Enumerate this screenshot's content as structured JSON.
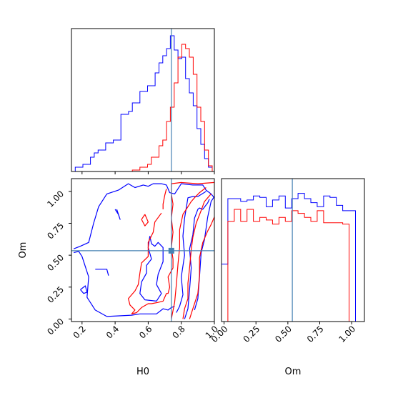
{
  "chart_data": [
    {
      "type": "histogram",
      "panel": "H0-marginal",
      "bins": [
        0.136,
        0.159,
        0.182,
        0.205,
        0.228,
        0.251,
        0.274,
        0.297,
        0.32,
        0.343,
        0.366,
        0.389,
        0.412,
        0.435,
        0.458,
        0.481,
        0.504,
        0.527,
        0.55,
        0.573,
        0.596,
        0.619,
        0.642,
        0.665,
        0.688,
        0.711,
        0.734,
        0.757,
        0.78,
        0.803,
        0.826,
        0.849,
        0.872,
        0.895,
        0.918,
        0.941,
        0.964,
        0.987
      ],
      "series": [
        {
          "color": "#0000ff",
          "values": [
            0.0,
            0.03,
            0.03,
            0.05,
            0.05,
            0.1,
            0.13,
            0.15,
            0.15,
            0.2,
            0.2,
            0.22,
            0.22,
            0.4,
            0.4,
            0.42,
            0.48,
            0.48,
            0.56,
            0.56,
            0.6,
            0.6,
            0.69,
            0.76,
            0.81,
            0.86,
            0.95,
            0.85,
            0.79,
            0.8,
            0.65,
            0.55,
            0.46,
            0.3,
            0.19,
            0.09,
            0.03
          ]
        },
        {
          "color": "#ff0000",
          "values": [
            0.0,
            0.0,
            0.0,
            0.0,
            0.0,
            0.0,
            0.0,
            0.0,
            0.0,
            0.0,
            0.0,
            0.0,
            0.0,
            0.0,
            0.0,
            0.0,
            0.01,
            0.01,
            0.03,
            0.03,
            0.05,
            0.1,
            0.1,
            0.18,
            0.22,
            0.35,
            0.45,
            0.62,
            0.8,
            0.89,
            0.86,
            0.8,
            0.68,
            0.45,
            0.35,
            0.15,
            0.04
          ]
        }
      ],
      "xlim": [
        0.136,
        1.0
      ],
      "xticks": [
        0.2,
        0.4,
        0.6,
        0.8,
        1.0
      ],
      "truth": 0.74,
      "xticklabels_shown": false,
      "yticklabels_shown": false
    },
    {
      "type": "contour",
      "panel": "H0-Om-joint",
      "xlabel": "H0",
      "ylabel": "Om",
      "xlim": [
        0.136,
        1.0
      ],
      "ylim": [
        -0.02,
        1.1
      ],
      "xticks": [
        0.2,
        0.4,
        0.6,
        0.8,
        1.0
      ],
      "xticklabels": [
        "0.2",
        "0.4",
        "0.6",
        "0.8",
        "1.0"
      ],
      "yticks": [
        0.0,
        0.25,
        0.5,
        0.75,
        1.0
      ],
      "yticklabels": [
        "0.00",
        "0.25",
        "0.50",
        "0.75",
        "1.00"
      ],
      "truth": {
        "x": 0.74,
        "y": 0.535
      },
      "series": [
        {
          "color": "#0000ff",
          "contours": [
            [
              [
                0.15,
                0.55
              ],
              [
                0.19,
                0.57
              ],
              [
                0.24,
                0.6
              ],
              [
                0.27,
                0.75
              ],
              [
                0.3,
                0.88
              ],
              [
                0.35,
                0.98
              ],
              [
                0.42,
                1.01
              ],
              [
                0.48,
                1.06
              ],
              [
                0.52,
                1.03
              ],
              [
                0.57,
                1.05
              ],
              [
                0.6,
                1.04
              ],
              [
                0.63,
                1.06
              ],
              [
                0.68,
                1.06
              ],
              [
                0.71,
                1.05
              ],
              [
                0.73,
                0.99
              ],
              [
                0.76,
                0.98
              ],
              [
                0.8,
                1.06
              ],
              [
                0.87,
                1.05
              ],
              [
                0.93,
                1.05
              ],
              [
                0.95,
                1.01
              ],
              [
                0.98,
                0.98
              ],
              [
                1.0,
                0.95
              ]
            ],
            [
              [
                0.15,
                0.52
              ],
              [
                0.18,
                0.53
              ],
              [
                0.2,
                0.49
              ],
              [
                0.24,
                0.33
              ],
              [
                0.23,
                0.17
              ],
              [
                0.28,
                0.07
              ],
              [
                0.35,
                0.02
              ],
              [
                0.5,
                0.03
              ],
              [
                0.55,
                0.04
              ],
              [
                0.61,
                0.04
              ],
              [
                0.65,
                0.04
              ],
              [
                0.69,
                0.08
              ],
              [
                0.72,
                0.07
              ],
              [
                0.74,
                0.09
              ],
              [
                0.76,
                0.1
              ]
            ],
            [
              [
                0.28,
                0.39
              ],
              [
                0.3,
                0.39
              ],
              [
                0.35,
                0.39
              ],
              [
                0.36,
                0.34
              ]
            ],
            [
              [
                0.19,
                0.23
              ],
              [
                0.21,
                0.2
              ],
              [
                0.23,
                0.21
              ],
              [
                0.22,
                0.26
              ],
              [
                0.19,
                0.23
              ]
            ],
            [
              [
                0.4,
                0.86
              ],
              [
                0.42,
                0.82
              ],
              [
                0.43,
                0.78
              ],
              [
                0.41,
                0.86
              ]
            ],
            [
              [
                0.61,
                0.65
              ],
              [
                0.6,
                0.56
              ],
              [
                0.62,
                0.47
              ],
              [
                0.59,
                0.42
              ],
              [
                0.59,
                0.36
              ],
              [
                0.56,
                0.29
              ],
              [
                0.55,
                0.2
              ],
              [
                0.58,
                0.15
              ],
              [
                0.65,
                0.14
              ],
              [
                0.68,
                0.2
              ],
              [
                0.65,
                0.27
              ],
              [
                0.66,
                0.35
              ],
              [
                0.69,
                0.45
              ],
              [
                0.69,
                0.56
              ],
              [
                0.66,
                0.6
              ],
              [
                0.64,
                0.57
              ],
              [
                0.62,
                0.59
              ],
              [
                0.61,
                0.65
              ]
            ],
            [
              [
                0.77,
                0.05
              ],
              [
                0.79,
                0.1
              ],
              [
                0.81,
                0.19
              ],
              [
                0.8,
                0.33
              ],
              [
                0.82,
                0.5
              ],
              [
                0.81,
                0.65
              ],
              [
                0.82,
                0.79
              ],
              [
                0.84,
                0.95
              ],
              [
                0.87,
                0.96
              ],
              [
                0.9,
                0.96
              ],
              [
                0.95,
                1.0
              ]
            ],
            [
              [
                0.82,
                0.0
              ],
              [
                0.84,
                0.08
              ],
              [
                0.85,
                0.23
              ],
              [
                0.86,
                0.4
              ],
              [
                0.85,
                0.55
              ],
              [
                0.87,
                0.66
              ],
              [
                0.88,
                0.79
              ],
              [
                0.9,
                0.86
              ],
              [
                0.91,
                0.87
              ],
              [
                0.93,
                0.86
              ],
              [
                0.96,
                0.91
              ],
              [
                0.97,
                0.94
              ]
            ],
            [
              [
                0.88,
                0.07
              ],
              [
                0.9,
                0.16
              ],
              [
                0.91,
                0.33
              ],
              [
                0.92,
                0.52
              ],
              [
                0.94,
                0.62
              ],
              [
                0.96,
                0.8
              ],
              [
                0.98,
                0.92
              ],
              [
                1.0,
                0.96
              ]
            ]
          ]
        },
        {
          "color": "#ff0000",
          "contours": [
            [
              [
                0.68,
                0.83
              ],
              [
                0.64,
                0.76
              ],
              [
                0.63,
                0.68
              ],
              [
                0.6,
                0.6
              ],
              [
                0.6,
                0.49
              ],
              [
                0.56,
                0.44
              ],
              [
                0.55,
                0.36
              ],
              [
                0.54,
                0.27
              ],
              [
                0.52,
                0.22
              ],
              [
                0.48,
                0.16
              ],
              [
                0.49,
                0.11
              ],
              [
                0.52,
                0.07
              ],
              [
                0.5,
                0.04
              ],
              [
                0.53,
                0.05
              ],
              [
                0.56,
                0.09
              ],
              [
                0.6,
                0.12
              ],
              [
                0.62,
                0.12
              ],
              [
                0.66,
                0.13
              ],
              [
                0.69,
                0.14
              ],
              [
                0.71,
                0.2
              ],
              [
                0.72,
                0.2
              ],
              [
                0.73,
                0.25
              ],
              [
                0.72,
                0.33
              ],
              [
                0.75,
                0.4
              ],
              [
                0.75,
                0.47
              ],
              [
                0.74,
                0.56
              ],
              [
                0.75,
                0.68
              ],
              [
                0.74,
                0.79
              ],
              [
                0.75,
                0.9
              ],
              [
                0.74,
                0.98
              ],
              [
                0.74,
                1.06
              ],
              [
                0.8,
                1.07
              ],
              [
                0.9,
                1.06
              ],
              [
                1.0,
                1.07
              ]
            ],
            [
              [
                0.58,
                0.82
              ],
              [
                0.56,
                0.78
              ],
              [
                0.58,
                0.73
              ],
              [
                0.6,
                0.76
              ],
              [
                0.58,
                0.82
              ]
            ],
            [
              [
                0.71,
                1.02
              ],
              [
                0.7,
                0.97
              ],
              [
                0.69,
                0.9
              ],
              [
                0.69,
                0.86
              ]
            ],
            [
              [
                0.74,
                0.0
              ],
              [
                0.76,
                0.13
              ],
              [
                0.77,
                0.27
              ],
              [
                0.78,
                0.43
              ],
              [
                0.79,
                0.56
              ],
              [
                0.79,
                0.7
              ],
              [
                0.81,
                0.82
              ],
              [
                0.84,
                0.88
              ],
              [
                0.86,
                0.92
              ],
              [
                0.88,
                0.95
              ],
              [
                0.91,
                0.99
              ],
              [
                0.95,
                1.03
              ]
            ],
            [
              [
                0.81,
                0.0
              ],
              [
                0.82,
                0.08
              ],
              [
                0.84,
                0.16
              ],
              [
                0.84,
                0.28
              ],
              [
                0.85,
                0.4
              ],
              [
                0.86,
                0.54
              ],
              [
                0.87,
                0.64
              ],
              [
                0.89,
                0.75
              ],
              [
                0.92,
                0.85
              ],
              [
                0.94,
                0.92
              ],
              [
                0.96,
                0.95
              ],
              [
                0.98,
                0.98
              ]
            ],
            [
              [
                0.85,
                0.0
              ],
              [
                0.87,
                0.08
              ],
              [
                0.9,
                0.2
              ],
              [
                0.91,
                0.34
              ],
              [
                0.91,
                0.48
              ],
              [
                0.93,
                0.6
              ],
              [
                0.96,
                0.69
              ],
              [
                0.98,
                0.74
              ],
              [
                1.0,
                0.8
              ]
            ]
          ]
        }
      ]
    },
    {
      "type": "histogram",
      "panel": "Om-marginal",
      "xlabel": "Om",
      "bins": [
        -0.02,
        0.03,
        0.08,
        0.13,
        0.18,
        0.23,
        0.28,
        0.33,
        0.38,
        0.43,
        0.48,
        0.53,
        0.58,
        0.63,
        0.68,
        0.73,
        0.78,
        0.83,
        0.88,
        0.93,
        0.98,
        1.03
      ],
      "series": [
        {
          "color": "#0000ff",
          "values": [
            0.43,
            0.92,
            0.92,
            0.9,
            0.91,
            0.94,
            0.93,
            0.86,
            0.91,
            0.94,
            0.85,
            0.92,
            0.96,
            0.92,
            0.89,
            0.86,
            0.94,
            0.93,
            0.87,
            0.83,
            0.83
          ]
        },
        {
          "color": "#ff0000",
          "values": [
            0.0,
            0.75,
            0.84,
            0.75,
            0.84,
            0.75,
            0.78,
            0.76,
            0.73,
            0.78,
            0.75,
            0.83,
            0.81,
            0.78,
            0.75,
            0.83,
            0.74,
            0.74,
            0.74,
            0.73,
            0.0
          ]
        }
      ],
      "xlim": [
        -0.02,
        1.1
      ],
      "xticks": [
        0.0,
        0.25,
        0.5,
        0.75,
        1.0
      ],
      "xticklabels": [
        "0.00",
        "0.25",
        "0.50",
        "0.75",
        "1.00"
      ],
      "truth": 0.535,
      "yticklabels_shown": false
    }
  ]
}
